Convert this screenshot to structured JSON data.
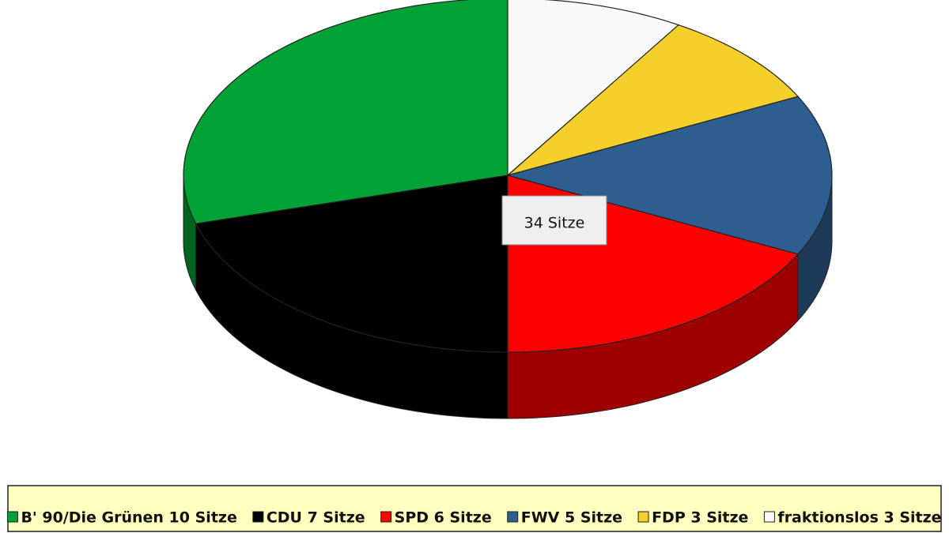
{
  "chart_data": {
    "type": "pie3d",
    "categories": [
      "B' 90/Die Grünen 10 Sitze",
      "CDU 7 Sitze",
      "SPD 6 Sitze",
      "FWV 5 Sitze",
      "FDP 3 Sitze",
      "fraktionslos 3 Sitze"
    ],
    "values": [
      10,
      7,
      6,
      5,
      3,
      3
    ],
    "colors": [
      "#00a135",
      "#000000",
      "#ff0000",
      "#2e5e90",
      "#f5cf2a",
      "#fafafa"
    ],
    "center_label": "34 Sitze",
    "legend": "bottom"
  }
}
